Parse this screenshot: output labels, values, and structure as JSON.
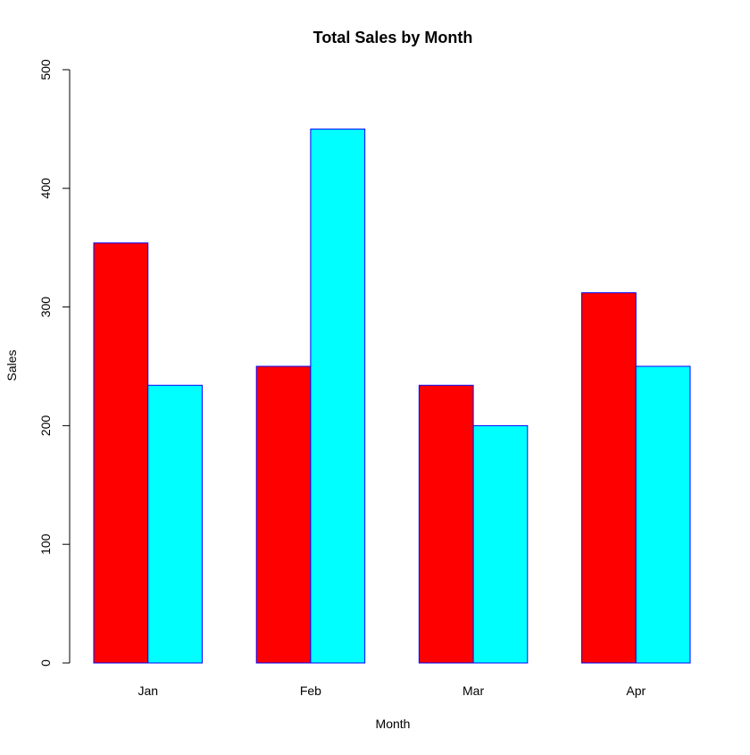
{
  "chart_data": {
    "type": "bar",
    "title": "Total Sales by Month",
    "xlabel": "Month",
    "ylabel": "Sales",
    "categories": [
      "Jan",
      "Feb",
      "Mar",
      "Apr"
    ],
    "series": [
      {
        "values": [
          354,
          250,
          234,
          312
        ]
      },
      {
        "values": [
          234,
          450,
          200,
          250
        ]
      }
    ],
    "ylim": [
      0,
      500
    ],
    "yticks": [
      0,
      100,
      200,
      300,
      400,
      500
    ],
    "series_colors": [
      "#ff0000",
      "#00ffff"
    ],
    "bar_border_color": "#0000ff",
    "grid": false,
    "legend": "none"
  }
}
